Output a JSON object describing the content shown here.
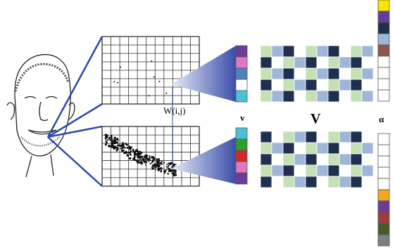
{
  "labels": {
    "weight": "W(i,j)",
    "vector": "v",
    "matrix": "V",
    "alpha": "α"
  }
}
